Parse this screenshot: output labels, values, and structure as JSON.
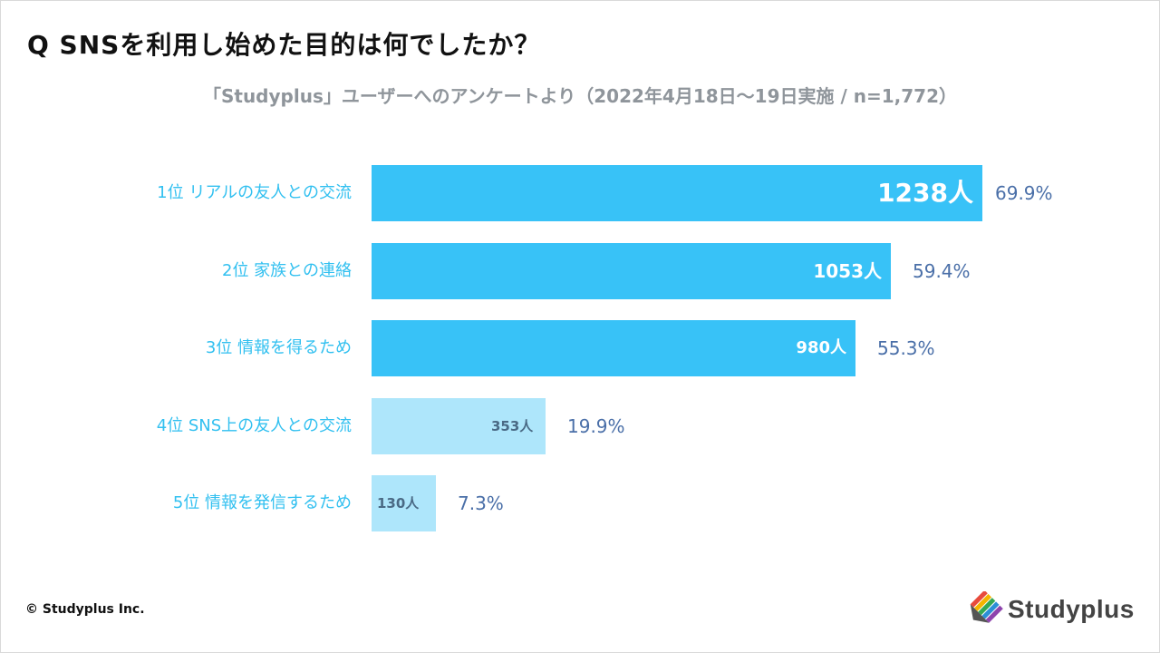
{
  "header": {
    "title": "Q SNSを利用し始めた目的は何でしたか？",
    "subtitle": "「Studyplus」ユーザーへのアンケートより（2022年4月18日〜19日実施 / n=1,772）"
  },
  "chart_data": {
    "type": "bar",
    "orientation": "horizontal",
    "title": "Q SNSを利用し始めた目的は何でしたか？",
    "subtitle": "「Studyplus」ユーザーへのアンケートより（2022年4月18日〜19日実施 / n=1,772）",
    "categories": [
      "1位 リアルの友人との交流",
      "2位 家族との連絡",
      "3位 情報を得るため",
      "4位 SNS上の友人との交流",
      "5位 情報を発信するため"
    ],
    "values": [
      1238,
      1053,
      980,
      353,
      130
    ],
    "count_labels": [
      "1238人",
      "1053人",
      "980人",
      "353人",
      "130人"
    ],
    "percent_labels": [
      "69.9%",
      "59.4%",
      "55.3%",
      "19.9%",
      "7.3%"
    ],
    "xlim": [
      0,
      1238
    ],
    "grid": false,
    "legend": "none",
    "colors": {
      "top3": "#38c2f7",
      "others": "#aee6fb",
      "label": "#32c0f0",
      "percent": "#4a6fa8"
    }
  },
  "footer": {
    "copyright": "© Studyplus Inc.",
    "logo_text": "Studyplus",
    "logo_icon": "pencil-stripes-icon"
  }
}
